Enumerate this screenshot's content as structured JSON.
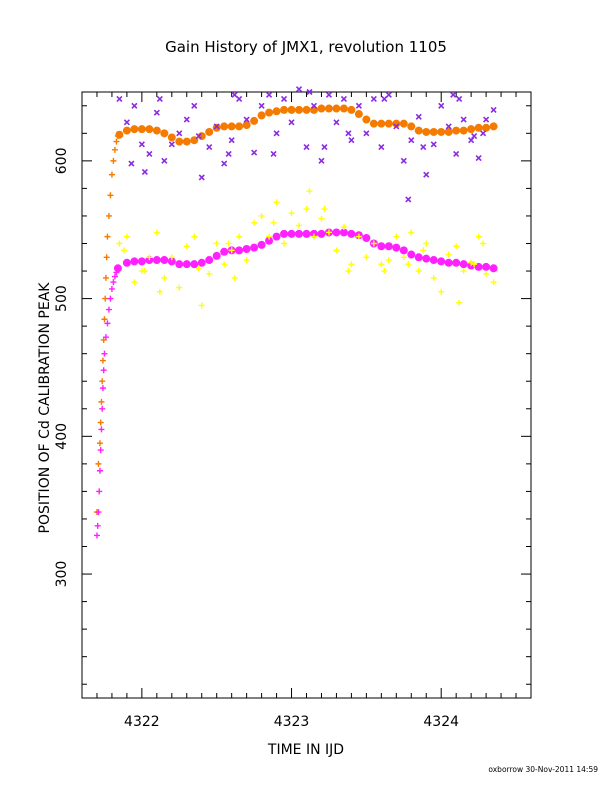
{
  "chart_data": {
    "type": "scatter",
    "title": "Gain History of JMX1, revolution 1105",
    "xlabel": "TIME IN IJD",
    "ylabel": "POSITION OF Cd CALIBRATION PEAK",
    "xlim": [
      4321.6,
      4324.6
    ],
    "ylim": [
      210,
      650
    ],
    "x_ticks": [
      4322,
      4323,
      4324
    ],
    "y_ticks": [
      300,
      400,
      500,
      600
    ],
    "grid": false,
    "footer": "oxborrow 30-Nov-2011 14:59",
    "series": [
      {
        "color": "#f47b00",
        "marker": "plus",
        "x": [
          4321.7,
          4321.71,
          4321.72,
          4321.725,
          4321.73,
          4321.735,
          4321.74,
          4321.745,
          4321.75,
          4321.755,
          4321.76,
          4321.765,
          4321.77,
          4321.78,
          4321.79,
          4321.8,
          4321.81,
          4321.82,
          4321.83,
          4321.84
        ],
        "y": [
          345,
          380,
          395,
          410,
          425,
          440,
          455,
          470,
          485,
          500,
          515,
          530,
          545,
          560,
          575,
          590,
          600,
          608,
          614,
          618
        ]
      },
      {
        "color": "#f47b00",
        "marker": "circle",
        "x": [
          4321.85,
          4321.9,
          4321.95,
          4322.0,
          4322.05,
          4322.1,
          4322.15,
          4322.2,
          4322.25,
          4322.3,
          4322.35,
          4322.4,
          4322.45,
          4322.5,
          4322.55,
          4322.6,
          4322.65,
          4322.7,
          4322.75,
          4322.8,
          4322.85,
          4322.9,
          4322.95,
          4323.0,
          4323.05,
          4323.1,
          4323.15,
          4323.2,
          4323.25,
          4323.3,
          4323.35,
          4323.4,
          4323.45,
          4323.5,
          4323.55,
          4323.6,
          4323.65,
          4323.7,
          4323.75,
          4323.8,
          4323.85,
          4323.9,
          4323.95,
          4324.0,
          4324.05,
          4324.1,
          4324.15,
          4324.2,
          4324.25,
          4324.3,
          4324.35
        ],
        "y": [
          619,
          622,
          623,
          623,
          623,
          622,
          620,
          617,
          614,
          614,
          615,
          618,
          621,
          624,
          625,
          625,
          625,
          626,
          629,
          633,
          635,
          636,
          637,
          637,
          637,
          637,
          637,
          638,
          638,
          638,
          638,
          637,
          634,
          630,
          627,
          627,
          627,
          627,
          627,
          625,
          622,
          621,
          621,
          621,
          621,
          622,
          622,
          623,
          624,
          624,
          625
        ]
      },
      {
        "color": "#ff20ff",
        "marker": "plus",
        "x": [
          4321.7,
          4321.705,
          4321.71,
          4321.715,
          4321.72,
          4321.725,
          4321.73,
          4321.735,
          4321.74,
          4321.745,
          4321.75,
          4321.76,
          4321.77,
          4321.78,
          4321.79,
          4321.8,
          4321.81,
          4321.82,
          4321.83
        ],
        "y": [
          328,
          335,
          345,
          360,
          375,
          390,
          405,
          420,
          435,
          448,
          460,
          472,
          482,
          492,
          500,
          507,
          512,
          516,
          519
        ]
      },
      {
        "color": "#ff20ff",
        "marker": "circle",
        "x": [
          4321.84,
          4321.9,
          4321.95,
          4322.0,
          4322.05,
          4322.1,
          4322.15,
          4322.2,
          4322.25,
          4322.3,
          4322.35,
          4322.4,
          4322.45,
          4322.5,
          4322.55,
          4322.6,
          4322.65,
          4322.7,
          4322.75,
          4322.8,
          4322.85,
          4322.9,
          4322.95,
          4323.0,
          4323.05,
          4323.1,
          4323.15,
          4323.2,
          4323.25,
          4323.3,
          4323.35,
          4323.4,
          4323.45,
          4323.5,
          4323.55,
          4323.6,
          4323.65,
          4323.7,
          4323.75,
          4323.8,
          4323.85,
          4323.9,
          4323.95,
          4324.0,
          4324.05,
          4324.1,
          4324.15,
          4324.2,
          4324.25,
          4324.3,
          4324.35
        ],
        "y": [
          522,
          526,
          527,
          527,
          528,
          528,
          528,
          527,
          525,
          525,
          525,
          526,
          528,
          531,
          534,
          535,
          535,
          536,
          537,
          539,
          542,
          545,
          547,
          547,
          547,
          547,
          547,
          547,
          548,
          548,
          548,
          547,
          546,
          544,
          540,
          538,
          538,
          537,
          535,
          532,
          530,
          529,
          528,
          527,
          526,
          526,
          525,
          524,
          523,
          523,
          522
        ]
      },
      {
        "color": "#8a2be2",
        "marker": "x",
        "x": [
          4321.85,
          4321.9,
          4321.95,
          4322.0,
          4322.05,
          4322.1,
          4322.15,
          4322.2,
          4322.25,
          4322.3,
          4322.35,
          4322.4,
          4322.45,
          4322.5,
          4322.55,
          4322.6,
          4322.65,
          4322.7,
          4322.75,
          4322.8,
          4322.85,
          4322.9,
          4322.95,
          4323.0,
          4323.05,
          4323.1,
          4323.15,
          4323.2,
          4323.25,
          4323.3,
          4323.35,
          4323.4,
          4323.45,
          4323.5,
          4323.55,
          4323.6,
          4323.65,
          4323.7,
          4323.75,
          4323.8,
          4323.85,
          4323.9,
          4323.95,
          4324.0,
          4324.05,
          4324.1,
          4324.15,
          4324.2,
          4324.25,
          4324.3,
          4324.35,
          4321.93,
          4322.12,
          4322.38,
          4322.62,
          4322.88,
          4323.12,
          4323.38,
          4323.62,
          4323.88,
          4324.12,
          4324.28,
          4322.02,
          4322.58,
          4323.22,
          4323.78,
          4324.22,
          4324.08
        ],
        "y": [
          645,
          628,
          640,
          612,
          605,
          635,
          600,
          612,
          620,
          630,
          640,
          588,
          610,
          625,
          598,
          615,
          645,
          630,
          606,
          640,
          648,
          620,
          645,
          628,
          652,
          610,
          640,
          600,
          648,
          628,
          645,
          615,
          640,
          620,
          645,
          610,
          648,
          625,
          600,
          615,
          632,
          590,
          612,
          640,
          625,
          605,
          630,
          615,
          602,
          630,
          637,
          598,
          645,
          618,
          648,
          605,
          650,
          620,
          645,
          610,
          645,
          620,
          592,
          605,
          610,
          572,
          618,
          648
        ]
      },
      {
        "color": "#ffff00",
        "marker": "plus",
        "x": [
          4321.85,
          4321.9,
          4321.95,
          4322.0,
          4322.05,
          4322.1,
          4322.15,
          4322.2,
          4322.25,
          4322.3,
          4322.35,
          4322.4,
          4322.45,
          4322.5,
          4322.55,
          4322.6,
          4322.65,
          4322.7,
          4322.75,
          4322.8,
          4322.85,
          4322.9,
          4322.95,
          4323.0,
          4323.05,
          4323.1,
          4323.15,
          4323.2,
          4323.25,
          4323.3,
          4323.35,
          4323.4,
          4323.45,
          4323.5,
          4323.55,
          4323.6,
          4323.65,
          4323.7,
          4323.75,
          4323.8,
          4323.85,
          4323.9,
          4323.95,
          4324.0,
          4324.05,
          4324.1,
          4324.15,
          4324.2,
          4324.25,
          4324.3,
          4324.35,
          4321.88,
          4322.12,
          4322.38,
          4322.62,
          4322.88,
          4323.12,
          4323.38,
          4323.62,
          4323.88,
          4324.12,
          4324.28,
          4322.02,
          4322.58,
          4323.22,
          4323.78,
          4324.22
        ],
        "y": [
          540,
          545,
          512,
          520,
          530,
          548,
          515,
          530,
          508,
          538,
          545,
          495,
          518,
          540,
          525,
          535,
          545,
          528,
          555,
          560,
          545,
          570,
          540,
          562,
          553,
          565,
          545,
          558,
          548,
          535,
          552,
          525,
          545,
          530,
          540,
          525,
          528,
          545,
          530,
          548,
          520,
          540,
          515,
          505,
          532,
          538,
          520,
          526,
          545,
          518,
          512,
          535,
          505,
          522,
          515,
          555,
          578,
          520,
          520,
          535,
          497,
          540,
          520,
          540,
          565,
          525,
          525
        ]
      }
    ]
  }
}
